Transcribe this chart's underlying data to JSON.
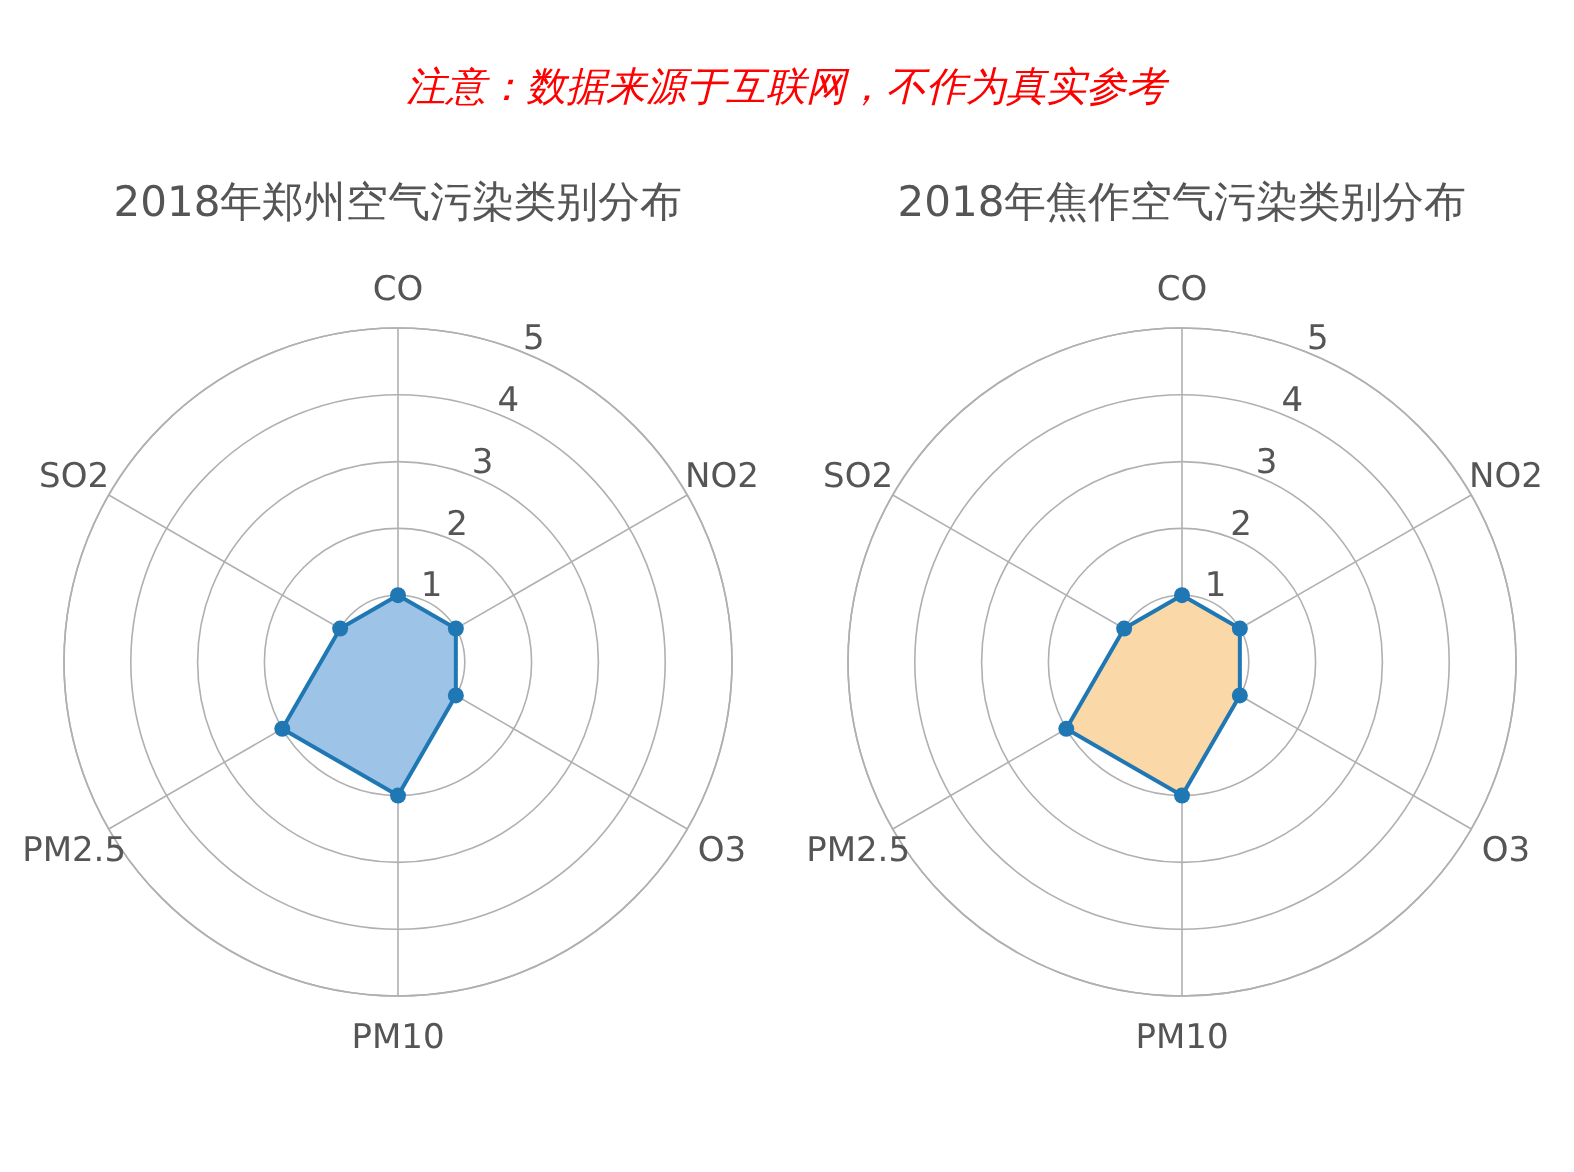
{
  "chart_data": [
    {
      "type": "radar",
      "title": "2018年郑州空气污染类别分布",
      "annotations": [
        "注意：数据来源于互联网，不作为真实参考"
      ],
      "categories": [
        "CO",
        "NO2",
        "O3",
        "PM10",
        "PM2.5",
        "SO2"
      ],
      "ylim": [
        0,
        5
      ],
      "yticks": [
        1,
        2,
        3,
        4,
        5
      ],
      "grid": true,
      "marker": "circle",
      "colors": [
        "#9dc3e6"
      ],
      "series": [
        {
          "color": "#1f77b4",
          "values": [
            1,
            1,
            1,
            2,
            2,
            1
          ]
        }
      ]
    },
    {
      "type": "radar",
      "title": "2018年焦作空气污染类别分布",
      "categories": [
        "CO",
        "NO2",
        "O3",
        "PM10",
        "PM2.5",
        "SO2"
      ],
      "ylim": [
        0,
        5
      ],
      "yticks": [
        1,
        2,
        3,
        4,
        5
      ],
      "grid": true,
      "marker": "circle",
      "colors": [
        "#fbd8a8"
      ],
      "series": [
        {
          "color": "#1f77b4",
          "values": [
            1,
            1,
            1,
            2,
            2,
            1
          ]
        }
      ]
    }
  ]
}
